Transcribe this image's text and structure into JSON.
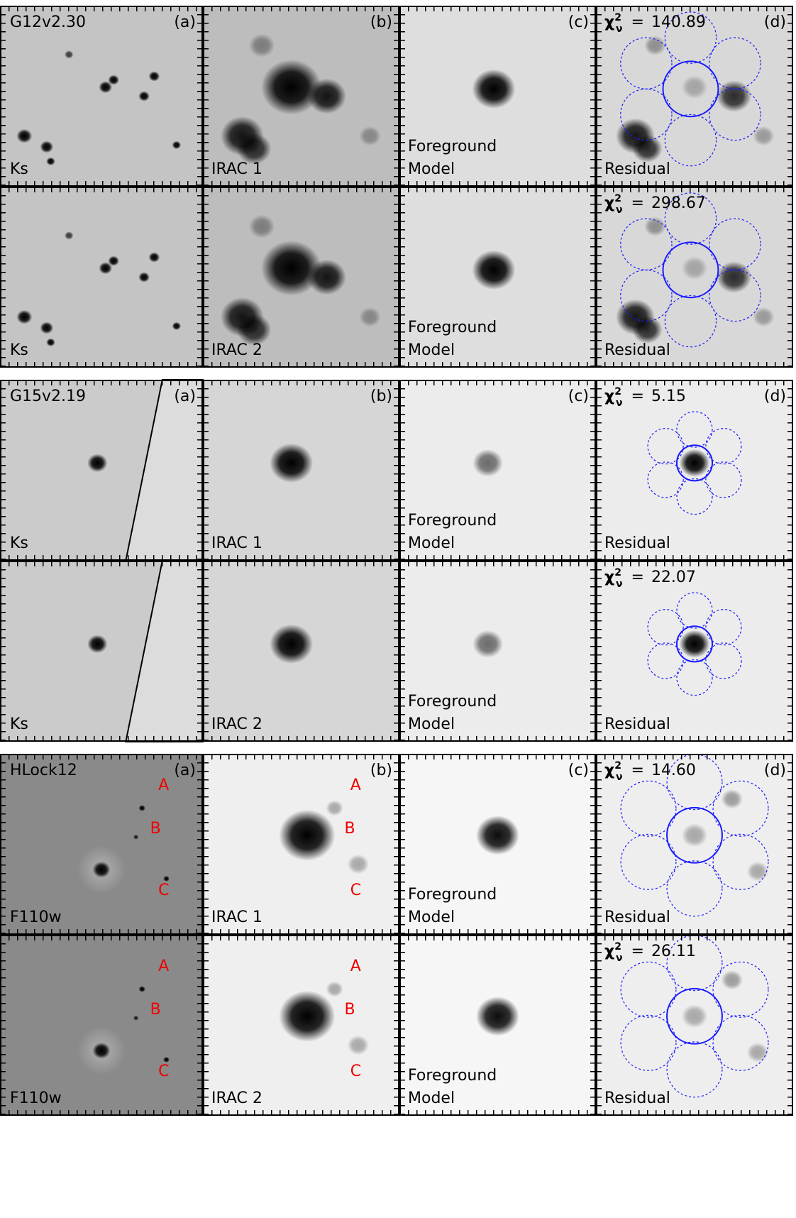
{
  "groups": [
    {
      "name": "G12v2.30",
      "letters": [
        "(a)",
        "(b)",
        "(c)",
        "(d)"
      ],
      "rows": [
        {
          "bands": [
            "Ks",
            "IRAC 1"
          ],
          "model": [
            "Foreground",
            "Model"
          ],
          "residual": "Residual",
          "statistic": {
            "symbol": "χ",
            "superscript": "2",
            "subscript": "ν",
            "relation": "="
          },
          "chi2": "140.89"
        },
        {
          "bands": [
            "Ks",
            "IRAC 2"
          ],
          "model": [
            "Foreground",
            "Model"
          ],
          "residual": "Residual",
          "statistic": {
            "symbol": "χ",
            "superscript": "2",
            "subscript": "ν",
            "relation": "="
          },
          "chi2": "298.67"
        }
      ]
    },
    {
      "name": "G15v2.19",
      "letters": [
        "(a)",
        "(b)",
        "(c)",
        "(d)"
      ],
      "rows": [
        {
          "bands": [
            "Ks",
            "IRAC 1"
          ],
          "model": [
            "Foreground",
            "Model"
          ],
          "residual": "Residual",
          "statistic": {
            "symbol": "χ",
            "superscript": "2",
            "subscript": "ν",
            "relation": "="
          },
          "chi2": "5.15"
        },
        {
          "bands": [
            "Ks",
            "IRAC 2"
          ],
          "model": [
            "Foreground",
            "Model"
          ],
          "residual": "Residual",
          "statistic": {
            "symbol": "χ",
            "superscript": "2",
            "subscript": "ν",
            "relation": "="
          },
          "chi2": "22.07"
        }
      ]
    },
    {
      "name": "HLock12",
      "letters": [
        "(a)",
        "(b)",
        "(c)",
        "(d)"
      ],
      "sources": [
        "A",
        "B",
        "C"
      ],
      "rows": [
        {
          "bands": [
            "F110w",
            "IRAC 1"
          ],
          "model": [
            "Foreground",
            "Model"
          ],
          "residual": "Residual",
          "statistic": {
            "symbol": "χ",
            "superscript": "2",
            "subscript": "ν",
            "relation": "="
          },
          "chi2": "14.60"
        },
        {
          "bands": [
            "F110w",
            "IRAC 2"
          ],
          "model": [
            "Foreground",
            "Model"
          ],
          "residual": "Residual",
          "statistic": {
            "symbol": "χ",
            "superscript": "2",
            "subscript": "ν",
            "relation": "="
          },
          "chi2": "26.11"
        }
      ]
    }
  ]
}
